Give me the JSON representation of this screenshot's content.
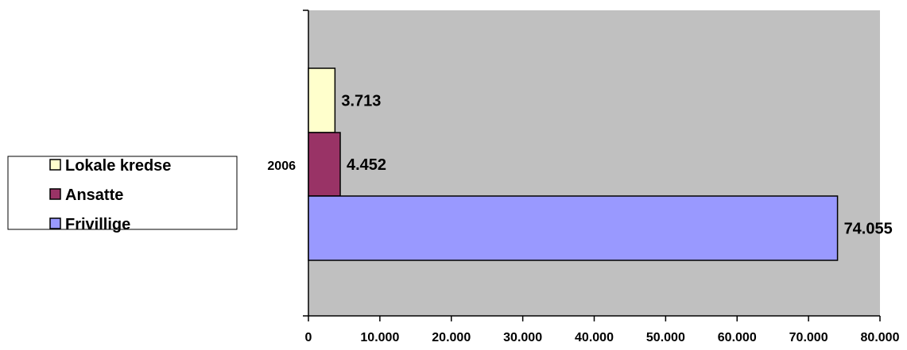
{
  "chart_data": {
    "type": "bar",
    "orientation": "horizontal",
    "categories": [
      "2006"
    ],
    "series": [
      {
        "name": "Lokale kredse",
        "values": [
          3713
        ],
        "label": "3.713",
        "color": "#ffffcc"
      },
      {
        "name": "Ansatte",
        "values": [
          4452
        ],
        "label": "4.452",
        "color": "#993366"
      },
      {
        "name": "Frivillige",
        "values": [
          74055
        ],
        "label": "74.055",
        "color": "#9999ff"
      }
    ],
    "xlim": [
      0,
      80000
    ],
    "x_ticks": [
      0,
      10000,
      20000,
      30000,
      40000,
      50000,
      60000,
      70000,
      80000
    ],
    "x_tick_labels": [
      "0",
      "10.000",
      "20.000",
      "30.000",
      "40.000",
      "50.000",
      "60.000",
      "70.000",
      "80.000"
    ],
    "plot_background": "#c0c0c0",
    "grid": false,
    "legend_position": "left"
  }
}
